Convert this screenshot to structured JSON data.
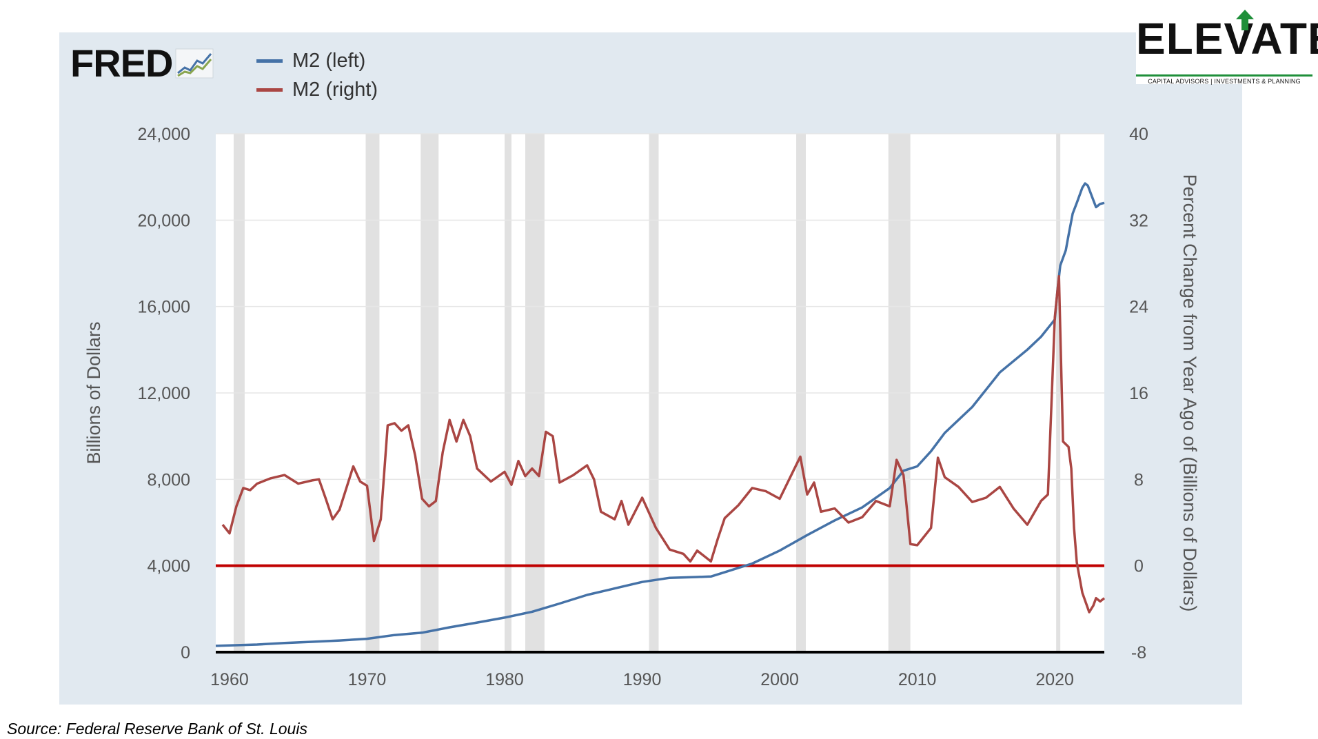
{
  "brand": {
    "fred_text": "FRED",
    "fred_icon": "fred-sparkline-icon",
    "elevate_word": "ELEVATE",
    "elevate_tagline": "CAPITAL ADVISORS | INVESTMENTS & PLANNING",
    "elevate_icon": "up-arrow-icon"
  },
  "colors": {
    "panel_bg": "#e1e9f0",
    "series_left": "#4572a7",
    "series_right": "#aa4643",
    "zero_line": "#c00000",
    "recession": "#e1e1e1",
    "brand_green": "#1f8f3a"
  },
  "source": "Source: Federal Reserve Bank of St. Louis",
  "chart_data": {
    "type": "line",
    "x_range": [
      1959,
      2023.6
    ],
    "x_ticks": [
      "1960",
      "1970",
      "1980",
      "1990",
      "2000",
      "2010",
      "2020"
    ],
    "ylabel_left": "Billions of Dollars",
    "ylabel_right": "Percent Change from Year Ago of (Billions of Dollars)",
    "ylim_left": [
      0,
      24000
    ],
    "ylim_right": [
      -8,
      40
    ],
    "yticks_left": [
      "0",
      "4,000",
      "8,000",
      "12,000",
      "16,000",
      "20,000",
      "24,000"
    ],
    "yticks_right": [
      "-8",
      "0",
      "8",
      "16",
      "24",
      "32",
      "40"
    ],
    "grid": true,
    "legend_position": "top-left",
    "recessions": [
      [
        1960.3,
        1961.1
      ],
      [
        1969.9,
        1970.9
      ],
      [
        1973.9,
        1975.2
      ],
      [
        1980.0,
        1980.5
      ],
      [
        1981.5,
        1982.9
      ],
      [
        1990.5,
        1991.2
      ],
      [
        2001.2,
        2001.9
      ],
      [
        2007.9,
        2009.5
      ],
      [
        2020.1,
        2020.4
      ]
    ],
    "reference_line": {
      "axis": "right",
      "value": 0
    },
    "series": [
      {
        "name": "M2 (left)",
        "axis": "left",
        "x": [
          1959,
          1960,
          1962,
          1964,
          1966,
          1968,
          1970,
          1972,
          1974,
          1976,
          1978,
          1980,
          1982,
          1984,
          1986,
          1988,
          1990,
          1992,
          1994,
          1995,
          1996,
          1998,
          2000,
          2002,
          2004,
          2006,
          2008,
          2009,
          2010,
          2011,
          2012,
          2014,
          2016,
          2018,
          2019,
          2020.0,
          2020.2,
          2020.4,
          2020.8,
          2021.0,
          2021.3,
          2021.6,
          2022.0,
          2022.2,
          2022.4,
          2022.7,
          2023.0,
          2023.3,
          2023.6
        ],
        "y": [
          290,
          310,
          350,
          420,
          480,
          540,
          620,
          790,
          900,
          1150,
          1370,
          1600,
          1870,
          2250,
          2650,
          2950,
          3250,
          3440,
          3480,
          3500,
          3700,
          4100,
          4700,
          5420,
          6100,
          6700,
          7600,
          8400,
          8600,
          9300,
          10150,
          11350,
          12950,
          14000,
          14600,
          15400,
          16800,
          17900,
          18600,
          19300,
          20300,
          20800,
          21500,
          21700,
          21600,
          21100,
          20600,
          20750,
          20800
        ]
      },
      {
        "name": "M2 (right)",
        "axis": "right",
        "x": [
          1959.5,
          1960.0,
          1960.5,
          1961.0,
          1961.5,
          1962.0,
          1963.0,
          1964.0,
          1965.0,
          1966.0,
          1966.5,
          1967.0,
          1967.5,
          1968.0,
          1969.0,
          1969.5,
          1970.0,
          1970.5,
          1971.0,
          1971.5,
          1972.0,
          1972.5,
          1973.0,
          1973.5,
          1974.0,
          1974.5,
          1975.0,
          1975.5,
          1976.0,
          1976.5,
          1977.0,
          1977.5,
          1978.0,
          1979.0,
          1980.0,
          1980.5,
          1981.0,
          1981.5,
          1982.0,
          1982.5,
          1983.0,
          1983.5,
          1984.0,
          1985.0,
          1986.0,
          1986.5,
          1987.0,
          1988.0,
          1988.5,
          1989.0,
          1990.0,
          1991.0,
          1992.0,
          1993.0,
          1993.5,
          1994.0,
          1995.0,
          1995.5,
          1996.0,
          1997.0,
          1998.0,
          1999.0,
          2000.0,
          2001.0,
          2001.5,
          2002.0,
          2002.5,
          2003.0,
          2004.0,
          2005.0,
          2006.0,
          2007.0,
          2008.0,
          2008.5,
          2009.0,
          2009.5,
          2010.0,
          2011.0,
          2011.5,
          2012.0,
          2013.0,
          2014.0,
          2015.0,
          2016.0,
          2017.0,
          2018.0,
          2019.0,
          2019.5,
          2020.0,
          2020.3,
          2020.6,
          2021.0,
          2021.2,
          2021.4,
          2021.6,
          2022.0,
          2022.5,
          2022.8,
          2023.0,
          2023.3,
          2023.6
        ],
        "y": [
          3.8,
          3.0,
          5.5,
          7.2,
          7.0,
          7.6,
          8.1,
          8.4,
          7.6,
          7.9,
          8.0,
          6.2,
          4.3,
          5.2,
          9.2,
          7.8,
          7.4,
          2.3,
          4.3,
          13.0,
          13.2,
          12.5,
          13.0,
          10.2,
          6.2,
          5.5,
          6.0,
          10.5,
          13.5,
          11.5,
          13.5,
          12.0,
          9.0,
          7.8,
          8.7,
          7.5,
          9.7,
          8.3,
          9.0,
          8.3,
          12.4,
          12.0,
          7.7,
          8.4,
          9.3,
          8.0,
          5.0,
          4.3,
          6.0,
          3.8,
          6.3,
          3.5,
          1.5,
          1.1,
          0.4,
          1.4,
          0.4,
          2.5,
          4.4,
          5.6,
          7.2,
          6.9,
          6.2,
          8.8,
          10.1,
          6.6,
          7.7,
          5.0,
          5.3,
          4.0,
          4.5,
          6.0,
          5.5,
          9.8,
          8.4,
          2.0,
          1.9,
          3.5,
          10.0,
          8.2,
          7.3,
          5.9,
          6.3,
          7.3,
          5.3,
          3.8,
          6.0,
          6.6,
          23.0,
          26.8,
          11.5,
          11.0,
          9.0,
          3.5,
          0.3,
          -2.5,
          -4.3,
          -3.7,
          -3.0,
          -3.3,
          -3.0
        ]
      }
    ]
  }
}
